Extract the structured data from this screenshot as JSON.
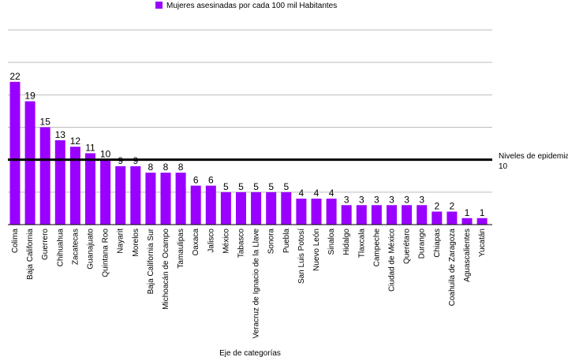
{
  "chart_data": {
    "type": "bar",
    "categories": [
      "Colima",
      "Baja California",
      "Guerrero",
      "Chihuahua",
      "Zacatecas",
      "Guanajuato",
      "Quintana Roo",
      "Nayarit",
      "Morelos",
      "Baja California Sur",
      "Michoacán de Ocampo",
      "Tamaulipas",
      "Oaxaca",
      "Jalisco",
      "México",
      "Tabasco",
      "Veracruz de Ignacio de la Llave",
      "Sonora",
      "Puebla",
      "San Luis Potosí",
      "Nuevo León",
      "Sinaloa",
      "Hidalgo",
      "Tlaxcala",
      "Campeche",
      "Ciudad de México",
      "Querétaro",
      "Durango",
      "Chiapas",
      "Coahuila de Zaragoza",
      "Aguascalientes",
      "Yucatán"
    ],
    "series": [
      {
        "name": "Mujeres asesinadas por cada 100 mil Habitantes",
        "values": [
          22,
          19,
          15,
          13,
          12,
          11,
          10,
          9,
          9,
          8,
          8,
          8,
          6,
          6,
          5,
          5,
          5,
          5,
          5,
          4,
          4,
          4,
          3,
          3,
          3,
          3,
          3,
          3,
          2,
          2,
          1,
          1
        ],
        "color": "#9900ff"
      }
    ],
    "reference_line": {
      "value": 10,
      "label": "Niveles de epidemia",
      "value_label": "10",
      "color": "#000000"
    },
    "xlabel": "Eje de categorías",
    "ylabel": "",
    "ylim": [
      0,
      30
    ],
    "grid": true,
    "legend": "top-center"
  }
}
